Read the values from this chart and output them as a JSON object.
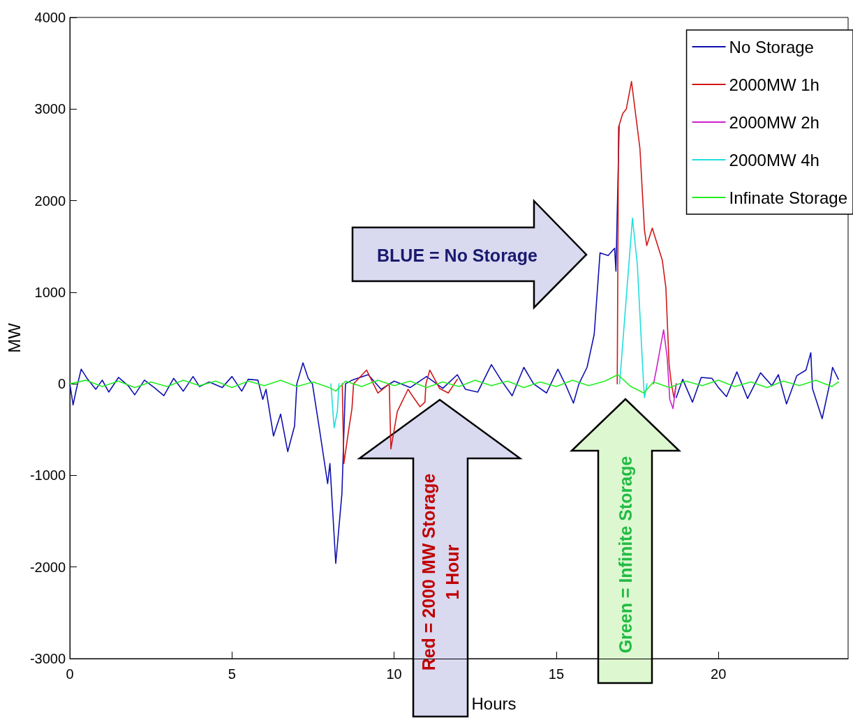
{
  "chart_data": {
    "type": "line",
    "xlabel": "Hours",
    "ylabel": "MW",
    "xlim": [
      0,
      24
    ],
    "xticks": [
      0,
      5,
      10,
      15,
      20
    ],
    "ylim": [
      -3000,
      4000
    ],
    "yticks": [
      -3000,
      -2000,
      -1000,
      0,
      1000,
      2000,
      3000,
      4000
    ],
    "grid": false,
    "legend": "top right",
    "marker": "none",
    "line_style": "solid",
    "annotations": [
      "BLUE = No Storage",
      "Red = 2000 MW Storage\n1 Hour",
      "Green = Infinite Storage"
    ],
    "series": [
      {
        "name": "No Storage",
        "color": "#1010b0",
        "x": [
          0,
          0.1,
          0.2,
          0.35,
          0.55,
          0.8,
          1.0,
          1.2,
          1.5,
          1.8,
          2.0,
          2.3,
          2.6,
          2.9,
          3.2,
          3.5,
          3.8,
          4.0,
          4.3,
          4.7,
          5.0,
          5.3,
          5.5,
          5.8,
          5.95,
          6.05,
          6.28,
          6.5,
          6.72,
          6.93,
          7.0,
          7.19,
          7.35,
          7.48,
          7.7,
          7.95,
          8.02,
          8.2,
          8.39,
          8.5,
          8.7,
          9.2,
          9.6,
          10,
          10.5,
          11,
          11.5,
          11.95,
          12.2,
          12.58,
          13.0,
          13.3,
          13.64,
          14.0,
          14.3,
          14.7,
          15.05,
          15.3,
          15.53,
          15.7,
          15.95,
          16.17,
          16.35,
          16.6,
          16.8,
          16.84,
          16.94,
          17.05,
          17.16,
          17.32,
          17.58,
          17.72,
          17.79,
          17.96,
          18.27,
          18.38,
          18.48,
          18.55,
          18.7,
          18.9,
          19.2,
          19.47,
          19.8,
          20.0,
          20.25,
          20.57,
          20.9,
          21.3,
          21.65,
          21.85,
          22.1,
          22.42,
          22.7,
          22.85,
          22.9,
          23.2,
          23.45,
          23.52,
          23.7
        ],
        "values": [
          0,
          -230,
          -60,
          160,
          50,
          -60,
          40,
          -90,
          70,
          -20,
          -120,
          40,
          -40,
          -130,
          60,
          -80,
          80,
          -30,
          20,
          -40,
          80,
          -80,
          50,
          40,
          -170,
          -60,
          -570,
          -330,
          -740,
          -460,
          0,
          230,
          60,
          0,
          -500,
          -1090,
          -870,
          -1960,
          -1200,
          0,
          40,
          100,
          -60,
          30,
          -40,
          80,
          -50,
          100,
          -60,
          -90,
          210,
          40,
          -130,
          180,
          0,
          -100,
          160,
          -20,
          -210,
          0,
          180,
          540,
          1430,
          1400,
          1480,
          1230,
          2820,
          null,
          null,
          null,
          null,
          null,
          null,
          null,
          null,
          null,
          null,
          null,
          -150,
          50,
          -200,
          70,
          60,
          -40,
          -140,
          130,
          -160,
          120,
          -20,
          100,
          -220,
          90,
          150,
          340,
          -50,
          -380,
          30,
          180,
          50
        ]
      },
      {
        "name": "2000MW 1h",
        "color": "#d01818",
        "x": [
          8.4,
          8.45,
          8.6,
          8.7,
          8.75,
          9.15,
          9.5,
          9.85,
          9.9,
          10.1,
          10.43,
          10.6,
          10.8,
          10.95,
          10.98,
          11.1,
          11.4,
          11.67,
          11.95,
          12.0,
          16.85,
          16.88,
          16.92,
          17.05,
          17.16,
          17.32,
          17.58,
          17.72,
          17.79,
          17.96,
          18.27,
          18.38,
          18.48,
          18.55,
          18.63,
          18.7
        ],
        "values": [
          0,
          -870,
          -500,
          -270,
          0,
          150,
          -100,
          0,
          -710,
          -300,
          -60,
          -150,
          -250,
          -200,
          0,
          150,
          -50,
          -100,
          50,
          null,
          null,
          0,
          2800,
          2950,
          3000,
          3300,
          2570,
          1680,
          1510,
          1700,
          1350,
          1050,
          210,
          0,
          -150,
          0
        ]
      },
      {
        "name": "2000MW 2h",
        "color": "#cc22cc",
        "x": [
          18.0,
          18.1,
          18.31,
          18.42,
          18.5,
          18.6,
          18.7
        ],
        "values": [
          0,
          180,
          590,
          290,
          -170,
          -270,
          0
        ]
      },
      {
        "name": "2000MW 4h",
        "color": "#22dddd",
        "x": [
          8.05,
          8.15,
          8.25,
          8.3,
          8.35,
          16.9,
          16.95,
          17.0,
          17.1,
          17.35,
          17.5,
          17.68,
          17.72,
          17.8
        ],
        "values": [
          0,
          -480,
          -300,
          0,
          null,
          null,
          0,
          210,
          670,
          1810,
          1300,
          80,
          -150,
          0
        ]
      },
      {
        "name": "Infinate Storage",
        "color": "#22ee22",
        "x": [
          0,
          0.5,
          1,
          1.5,
          2,
          2.5,
          3,
          3.5,
          4,
          4.5,
          5,
          5.5,
          6,
          6.5,
          7,
          7.5,
          8,
          8.2,
          8.5,
          9,
          9.5,
          10,
          10.5,
          11,
          11.5,
          12,
          12.5,
          13,
          13.5,
          14,
          14.5,
          15,
          15.5,
          16,
          16.5,
          16.9,
          17.3,
          17.7,
          18,
          18.5,
          19,
          19.5,
          20,
          20.5,
          21,
          21.5,
          22,
          22.5,
          23,
          23.5,
          23.7
        ],
        "values": [
          0,
          40,
          -30,
          30,
          -40,
          20,
          -30,
          40,
          -20,
          30,
          -40,
          30,
          -20,
          40,
          -30,
          20,
          -40,
          -80,
          30,
          -30,
          40,
          -20,
          30,
          -40,
          20,
          -30,
          40,
          -20,
          30,
          -40,
          20,
          -30,
          40,
          -20,
          30,
          100,
          -30,
          -100,
          20,
          -40,
          30,
          -20,
          40,
          -30,
          20,
          -40,
          30,
          -20,
          40,
          -30,
          20
        ]
      }
    ]
  }
}
